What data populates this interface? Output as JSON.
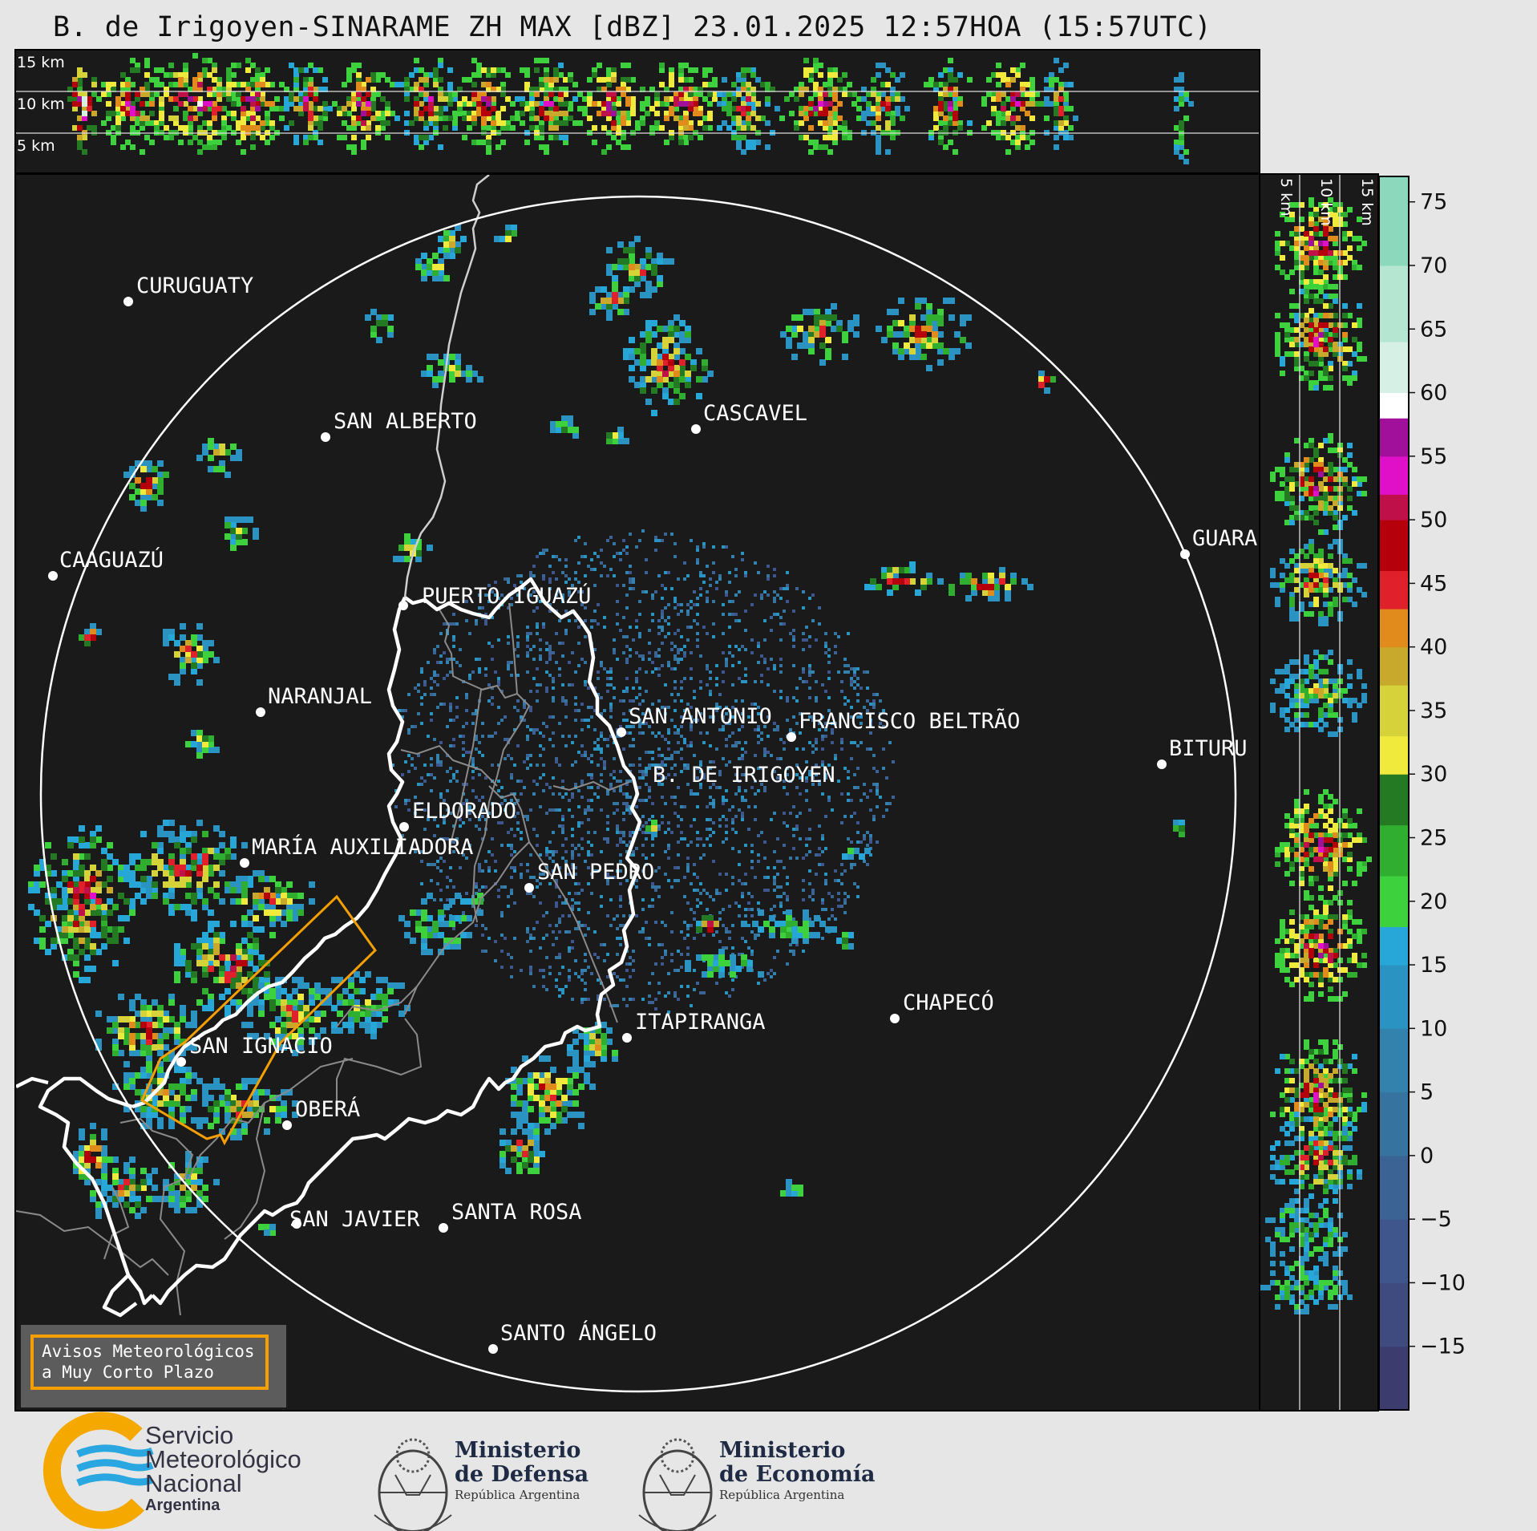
{
  "title": "B. de Irigoyen-SINARAME ZH MAX [dBZ] 23.01.2025 12:57HOA (15:57UTC)",
  "top_panel": {
    "altitude_labels": [
      "15 km",
      "10 km",
      "5 km"
    ]
  },
  "side_panel": {
    "altitude_labels": [
      "5 km",
      "10 km",
      "15 km"
    ]
  },
  "colorbar": {
    "ticks": [
      "75",
      "70",
      "65",
      "60",
      "55",
      "50",
      "45",
      "40",
      "35",
      "30",
      "25",
      "20",
      "15",
      "10",
      "5",
      "0",
      "−5",
      "−10",
      "−15"
    ],
    "tick_values": [
      75,
      70,
      65,
      60,
      55,
      50,
      45,
      40,
      35,
      30,
      25,
      20,
      15,
      10,
      5,
      0,
      -5,
      -10,
      -15
    ],
    "range": [
      -20,
      77
    ],
    "bands": [
      {
        "from": -20,
        "to": -15,
        "color": "#3c3d6e"
      },
      {
        "from": -15,
        "to": -10,
        "color": "#3f4a7e"
      },
      {
        "from": -10,
        "to": -5,
        "color": "#3f568c"
      },
      {
        "from": -5,
        "to": 0,
        "color": "#3b6494"
      },
      {
        "from": 0,
        "to": 5,
        "color": "#37739f"
      },
      {
        "from": 5,
        "to": 10,
        "color": "#3282ad"
      },
      {
        "from": 10,
        "to": 15,
        "color": "#2b93c2"
      },
      {
        "from": 15,
        "to": 18,
        "color": "#27a6d8"
      },
      {
        "from": 18,
        "to": 22,
        "color": "#3ed13e"
      },
      {
        "from": 22,
        "to": 26,
        "color": "#2fae2f"
      },
      {
        "from": 26,
        "to": 30,
        "color": "#237a23"
      },
      {
        "from": 30,
        "to": 33,
        "color": "#f0ea3c"
      },
      {
        "from": 33,
        "to": 37,
        "color": "#d6d23a"
      },
      {
        "from": 37,
        "to": 40,
        "color": "#c9a92c"
      },
      {
        "from": 40,
        "to": 43,
        "color": "#e08b1c"
      },
      {
        "from": 43,
        "to": 46,
        "color": "#e0202a"
      },
      {
        "from": 46,
        "to": 50,
        "color": "#b5000b"
      },
      {
        "from": 50,
        "to": 52,
        "color": "#c0104a"
      },
      {
        "from": 52,
        "to": 55,
        "color": "#e010c8"
      },
      {
        "from": 55,
        "to": 58,
        "color": "#a0109a"
      },
      {
        "from": 58,
        "to": 60,
        "color": "#ffffff"
      },
      {
        "from": 60,
        "to": 64,
        "color": "#d6f0e6"
      },
      {
        "from": 64,
        "to": 70,
        "color": "#b4e6d2"
      },
      {
        "from": 70,
        "to": 77,
        "color": "#8cd8bc"
      }
    ]
  },
  "cities": [
    {
      "name": "CURUGUATY"
    },
    {
      "name": "SAN ALBERTO"
    },
    {
      "name": "CASCAVEL"
    },
    {
      "name": "CAAGUAZÚ"
    },
    {
      "name": "GUARA"
    },
    {
      "name": "PUERTO IGUAZÚ"
    },
    {
      "name": "NARANJAL"
    },
    {
      "name": "SAN ANTONIO"
    },
    {
      "name": "FRANCISCO BELTRÃO"
    },
    {
      "name": "BITURU"
    },
    {
      "name": "B. DE IRIGOYEN"
    },
    {
      "name": "ELDORADO"
    },
    {
      "name": "MARÍA AUXILIADORA"
    },
    {
      "name": "SAN PEDRO"
    },
    {
      "name": "CHAPECÓ"
    },
    {
      "name": "ITAPIRANGA"
    },
    {
      "name": "SAN IGNACIO"
    },
    {
      "name": "OBERÁ"
    },
    {
      "name": "SAN JAVIER"
    },
    {
      "name": "SANTA ROSA"
    },
    {
      "name": "SANTO ÁNGELO"
    }
  ],
  "warning_box": {
    "line1": "Avisos Meteorológicos",
    "line2": "a Muy Corto Plazo"
  },
  "logos": {
    "smn": {
      "line1": "Servicio",
      "line2": "Meteorológico",
      "line3": "Nacional",
      "line4": "Argentina"
    },
    "defensa": {
      "line1": "Ministerio",
      "line2": "de Defensa",
      "line3": "República Argentina"
    },
    "economia": {
      "line1": "Ministerio",
      "line2": "de Economía",
      "line3": "República Argentina"
    }
  }
}
